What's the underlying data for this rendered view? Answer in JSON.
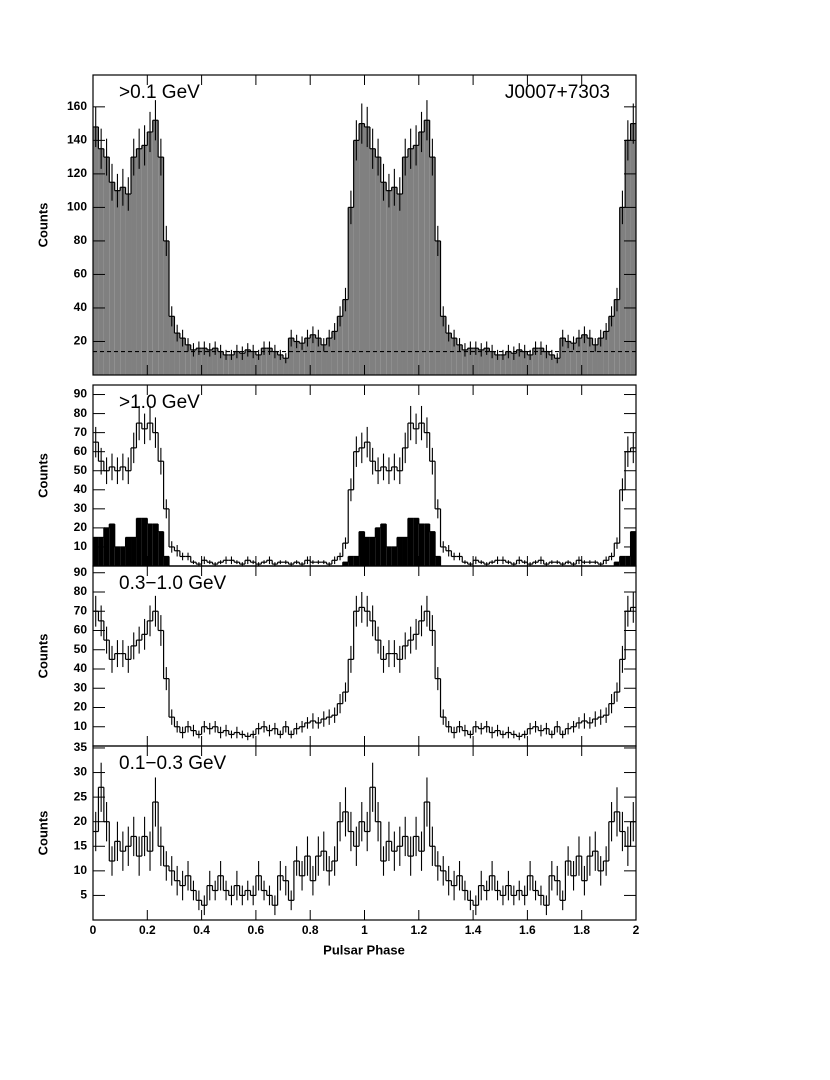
{
  "chart_data": {
    "type": "histogram",
    "xlabel": "Pulsar Phase",
    "xlim": [
      0,
      2
    ],
    "xticks": [
      0,
      0.2,
      0.4,
      0.6,
      0.8,
      1,
      1.2,
      1.4,
      1.6,
      1.8,
      2
    ],
    "bins": [
      0,
      0.02,
      0.04,
      0.06,
      0.08,
      0.1,
      0.12,
      0.14,
      0.16,
      0.18,
      0.2,
      0.22,
      0.24,
      0.26,
      0.28,
      0.3,
      0.32,
      0.34,
      0.36,
      0.38,
      0.4,
      0.42,
      0.44,
      0.46,
      0.48,
      0.5,
      0.52,
      0.54,
      0.56,
      0.58,
      0.6,
      0.62,
      0.64,
      0.66,
      0.68,
      0.7,
      0.72,
      0.74,
      0.76,
      0.78,
      0.8,
      0.82,
      0.84,
      0.86,
      0.88,
      0.9,
      0.92,
      0.94,
      0.96,
      0.98,
      1,
      1.02,
      1.04,
      1.06,
      1.08,
      1.1,
      1.12,
      1.14,
      1.16,
      1.18,
      1.2,
      1.22,
      1.24,
      1.26,
      1.28,
      1.3,
      1.32,
      1.34,
      1.36,
      1.38,
      1.4,
      1.42,
      1.44,
      1.46,
      1.48,
      1.5,
      1.52,
      1.54,
      1.56,
      1.58,
      1.6,
      1.62,
      1.64,
      1.66,
      1.68,
      1.7,
      1.72,
      1.74,
      1.76,
      1.78,
      1.8,
      1.82,
      1.84,
      1.86,
      1.88,
      1.9,
      1.92,
      1.94,
      1.96,
      1.98,
      2
    ],
    "panels": [
      {
        "label": ">0.1 GeV",
        "source": "J0007+7303",
        "ylabel": "Counts",
        "ylim": [
          0,
          179
        ],
        "yticks": [
          20,
          40,
          60,
          80,
          100,
          120,
          140,
          160
        ],
        "background": 14,
        "series": [
          {
            "color": "#808080",
            "edgecolor": "#000000",
            "filled": true,
            "values": [
              148,
              135,
              130,
              115,
              110,
              112,
              108,
              130,
              135,
              137,
              145,
              152,
              130,
              80,
              35,
              25,
              22,
              18,
              15,
              16,
              16,
              15,
              16,
              14,
              12,
              12,
              14,
              13,
              15,
              14,
              12,
              16,
              16,
              14,
              12,
              10,
              22,
              20,
              19,
              22,
              24,
              22,
              18,
              22,
              26,
              35,
              45,
              100,
              140,
              150,
              148,
              135,
              130,
              115,
              110,
              112,
              108,
              130,
              135,
              137,
              145,
              152,
              130,
              80,
              35,
              25,
              22,
              18,
              15,
              16,
              16,
              15,
              16,
              14,
              12,
              12,
              14,
              13,
              15,
              14,
              12,
              16,
              16,
              14,
              12,
              10,
              22,
              20,
              19,
              22,
              24,
              22,
              18,
              22,
              26,
              35,
              45,
              100,
              140,
              150
            ],
            "errors": [
              12,
              12,
              11,
              11,
              10,
              11,
              10,
              11,
              12,
              12,
              12,
              12,
              11,
              9,
              6,
              5,
              5,
              4,
              4,
              4,
              4,
              4,
              4,
              4,
              3,
              3,
              4,
              4,
              4,
              4,
              3,
              4,
              4,
              4,
              3,
              3,
              5,
              4,
              4,
              5,
              5,
              5,
              4,
              5,
              5,
              6,
              7,
              10,
              12,
              12,
              12,
              12,
              11,
              11,
              10,
              11,
              10,
              11,
              12,
              12,
              12,
              12,
              11,
              9,
              6,
              5,
              5,
              4,
              4,
              4,
              4,
              4,
              4,
              4,
              3,
              3,
              4,
              4,
              4,
              4,
              3,
              4,
              4,
              4,
              3,
              3,
              5,
              4,
              4,
              5,
              5,
              5,
              4,
              5,
              5,
              6,
              7,
              10,
              12,
              12
            ]
          }
        ]
      },
      {
        "label": ">1.0 GeV",
        "ylabel": "Counts",
        "ylim": [
          0,
          95
        ],
        "yticks": [
          10,
          20,
          30,
          40,
          50,
          60,
          70,
          80,
          90
        ],
        "series": [
          {
            "color": "#000000",
            "filled": false,
            "values": [
              65,
              55,
              50,
              52,
              50,
              52,
              50,
              62,
              75,
              72,
              75,
              70,
              55,
              30,
              10,
              8,
              5,
              5,
              2,
              1,
              3,
              2,
              1,
              2,
              3,
              3,
              2,
              1,
              3,
              2,
              1,
              2,
              3,
              1,
              2,
              2,
              1,
              2,
              1,
              3,
              2,
              2,
              2,
              1,
              3,
              5,
              12,
              40,
              60,
              62,
              65,
              55,
              50,
              52,
              50,
              52,
              50,
              62,
              75,
              72,
              75,
              70,
              55,
              30,
              10,
              8,
              5,
              5,
              2,
              1,
              3,
              2,
              1,
              2,
              3,
              3,
              2,
              1,
              3,
              2,
              1,
              2,
              3,
              1,
              2,
              2,
              1,
              2,
              1,
              3,
              2,
              2,
              2,
              1,
              3,
              5,
              12,
              40,
              60,
              62
            ],
            "errors": [
              8,
              7,
              7,
              7,
              7,
              7,
              7,
              8,
              9,
              8,
              9,
              8,
              7,
              5,
              3,
              3,
              2,
              2,
              1,
              1,
              2,
              1,
              1,
              1,
              2,
              2,
              1,
              1,
              2,
              1,
              1,
              1,
              2,
              1,
              1,
              1,
              1,
              1,
              1,
              2,
              1,
              1,
              1,
              1,
              2,
              2,
              3,
              6,
              8,
              8,
              8,
              7,
              7,
              7,
              7,
              7,
              7,
              8,
              9,
              8,
              9,
              8,
              7,
              5,
              3,
              3,
              2,
              2,
              1,
              1,
              2,
              1,
              1,
              1,
              2,
              2,
              1,
              1,
              2,
              1,
              1,
              1,
              2,
              1,
              1,
              1,
              1,
              1,
              1,
              2,
              1,
              1,
              1,
              1,
              2,
              2,
              3,
              6,
              8,
              8
            ]
          },
          {
            "color": "#000000",
            "filled": true,
            "values": [
              15,
              15,
              20,
              22,
              10,
              10,
              15,
              15,
              25,
              25,
              22,
              22,
              18,
              5,
              0,
              0,
              0,
              0,
              0,
              0,
              0,
              0,
              0,
              0,
              0,
              0,
              0,
              0,
              0,
              0,
              0,
              0,
              0,
              0,
              0,
              0,
              0,
              0,
              0,
              0,
              0,
              0,
              0,
              0,
              0,
              0,
              2,
              5,
              5,
              18,
              15,
              15,
              20,
              22,
              10,
              10,
              15,
              15,
              25,
              25,
              22,
              22,
              18,
              5,
              0,
              0,
              0,
              0,
              0,
              0,
              0,
              0,
              0,
              0,
              0,
              0,
              0,
              0,
              0,
              0,
              0,
              0,
              0,
              0,
              0,
              0,
              0,
              0,
              0,
              0,
              0,
              0,
              0,
              0,
              0,
              0,
              2,
              5,
              5,
              18
            ]
          }
        ]
      },
      {
        "label": "0.3−1.0 GeV",
        "ylabel": "Counts",
        "ylim": [
          0,
          93.5
        ],
        "yticks": [
          10,
          20,
          30,
          40,
          50,
          60,
          70,
          80,
          90
        ],
        "series": [
          {
            "color": "#000000",
            "filled": false,
            "values": [
              70,
              65,
              55,
              45,
              48,
              48,
              45,
              52,
              55,
              58,
              65,
              70,
              60,
              35,
              15,
              10,
              7,
              10,
              8,
              6,
              10,
              9,
              10,
              7,
              8,
              6,
              7,
              6,
              5,
              6,
              9,
              10,
              8,
              9,
              6,
              10,
              6,
              9,
              10,
              12,
              13,
              12,
              14,
              15,
              16,
              22,
              28,
              45,
              70,
              72,
              70,
              65,
              55,
              45,
              48,
              48,
              45,
              52,
              55,
              58,
              65,
              70,
              60,
              35,
              15,
              10,
              7,
              10,
              8,
              6,
              10,
              9,
              10,
              7,
              8,
              6,
              7,
              6,
              5,
              6,
              9,
              10,
              8,
              9,
              6,
              10,
              6,
              9,
              10,
              12,
              13,
              12,
              14,
              15,
              16,
              22,
              28,
              45,
              70,
              72
            ],
            "errors": [
              8,
              8,
              7,
              7,
              7,
              7,
              7,
              7,
              7,
              8,
              8,
              8,
              8,
              6,
              4,
              3,
              3,
              3,
              3,
              2,
              3,
              3,
              3,
              3,
              3,
              2,
              3,
              2,
              2,
              2,
              3,
              3,
              3,
              3,
              2,
              3,
              2,
              3,
              3,
              3,
              4,
              3,
              4,
              4,
              4,
              5,
              5,
              7,
              8,
              8,
              8,
              8,
              7,
              7,
              7,
              7,
              7,
              7,
              7,
              8,
              8,
              8,
              8,
              6,
              4,
              3,
              3,
              3,
              3,
              2,
              3,
              3,
              3,
              3,
              3,
              2,
              3,
              2,
              2,
              2,
              3,
              3,
              3,
              3,
              2,
              3,
              2,
              3,
              3,
              3,
              4,
              3,
              4,
              4,
              4,
              5,
              5,
              7,
              8,
              8
            ]
          }
        ]
      },
      {
        "label": "0.1−0.3 GeV",
        "ylabel": "Counts",
        "ylim": [
          0,
          35.4
        ],
        "yticks": [
          5,
          10,
          15,
          20,
          25,
          30,
          35
        ],
        "series": [
          {
            "color": "#000000",
            "filled": false,
            "values": [
              18,
              27,
              20,
              12,
              16,
              14,
              15,
              17,
              13,
              17,
              14,
              24,
              15,
              11,
              10,
              8,
              7,
              9,
              6,
              4,
              3,
              7,
              6,
              9,
              6,
              5,
              7,
              5,
              6,
              5,
              9,
              6,
              5,
              3,
              9,
              8,
              4,
              12,
              9,
              13,
              8,
              13,
              14,
              10,
              12,
              20,
              22,
              18,
              15,
              20,
              18,
              27,
              20,
              12,
              16,
              14,
              15,
              17,
              13,
              17,
              14,
              24,
              15,
              11,
              10,
              8,
              7,
              9,
              6,
              4,
              3,
              7,
              6,
              9,
              6,
              5,
              7,
              5,
              6,
              5,
              9,
              6,
              5,
              3,
              9,
              8,
              4,
              12,
              9,
              13,
              8,
              13,
              14,
              10,
              12,
              20,
              22,
              18,
              15,
              20
            ],
            "errors": [
              4,
              5,
              4,
              3,
              4,
              4,
              4,
              4,
              4,
              4,
              4,
              5,
              4,
              3,
              3,
              3,
              3,
              3,
              2,
              2,
              2,
              3,
              2,
              3,
              2,
              2,
              3,
              2,
              2,
              2,
              3,
              2,
              2,
              2,
              3,
              3,
              2,
              3,
              3,
              4,
              3,
              4,
              4,
              3,
              3,
              4,
              5,
              4,
              4,
              4,
              4,
              5,
              4,
              3,
              4,
              4,
              4,
              4,
              4,
              4,
              4,
              5,
              4,
              3,
              3,
              3,
              3,
              3,
              2,
              2,
              2,
              3,
              2,
              3,
              2,
              2,
              3,
              2,
              2,
              2,
              3,
              2,
              2,
              2,
              3,
              3,
              2,
              3,
              3,
              4,
              3,
              4,
              4,
              3,
              3,
              4,
              5,
              4,
              4,
              4
            ]
          }
        ]
      }
    ]
  }
}
